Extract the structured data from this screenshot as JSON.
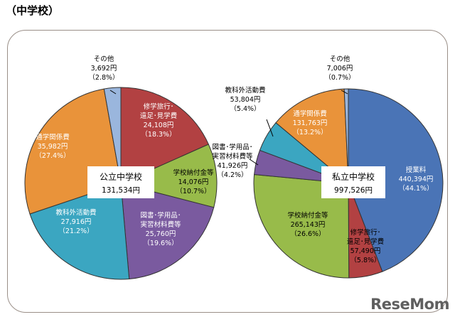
{
  "heading": "（中学校）",
  "watermark": "ReseMom",
  "colors": {
    "blue": "#4a74b6",
    "red": "#b24142",
    "green": "#98bb4a",
    "purple": "#7a5a9f",
    "teal": "#3ba6c1",
    "orange": "#e9933a",
    "lightblue": "#9ab6dd"
  },
  "chart_data": [
    {
      "type": "pie",
      "title": "公立中学校",
      "total": "131,534円",
      "slices": [
        {
          "name": "修学旅行・遠足・見学費",
          "value": 24108,
          "value_label": "24,108円",
          "pct_label": "（18.3%）",
          "color": "red"
        },
        {
          "name": "学校納付金等",
          "value": 14076,
          "value_label": "14,076円",
          "pct_label": "（10.7%）",
          "color": "green"
        },
        {
          "name": "図書・学用品・実習材料費等",
          "value": 25760,
          "value_label": "25,760円",
          "pct_label": "（19.6%）",
          "color": "purple"
        },
        {
          "name": "教科外活動費",
          "value": 27916,
          "value_label": "27,916円",
          "pct_label": "（21.2%）",
          "color": "teal"
        },
        {
          "name": "通学関係費",
          "value": 35982,
          "value_label": "35,982円",
          "pct_label": "（27.4%）",
          "color": "orange"
        },
        {
          "name": "その他",
          "value": 3692,
          "value_label": "3,692円",
          "pct_label": "（2.8%）",
          "color": "lightblue"
        }
      ]
    },
    {
      "type": "pie",
      "title": "私立中学校",
      "total": "997,526円",
      "slices": [
        {
          "name": "授業料",
          "value": 440394,
          "value_label": "440,394円",
          "pct_label": "（44.1%）",
          "color": "blue"
        },
        {
          "name": "修学旅行・遠足・見学費",
          "value": 57490,
          "value_label": "57,490円",
          "pct_label": "（5.8%）",
          "color": "red"
        },
        {
          "name": "学校納付金等",
          "value": 265143,
          "value_label": "265,143円",
          "pct_label": "（26.6%）",
          "color": "green"
        },
        {
          "name": "図書・学用品・実習材料費等",
          "value": 41926,
          "value_label": "41,926円",
          "pct_label": "（4.2%）",
          "color": "purple"
        },
        {
          "name": "教科外活動費",
          "value": 53804,
          "value_label": "53,804円",
          "pct_label": "（5.4%）",
          "color": "teal"
        },
        {
          "name": "通学関係費",
          "value": 131763,
          "value_label": "131,763円",
          "pct_label": "（13.2%）",
          "color": "orange"
        },
        {
          "name": "その他",
          "value": 7006,
          "value_label": "7,006円",
          "pct_label": "（0.7%）",
          "color": "lightblue"
        }
      ]
    }
  ]
}
